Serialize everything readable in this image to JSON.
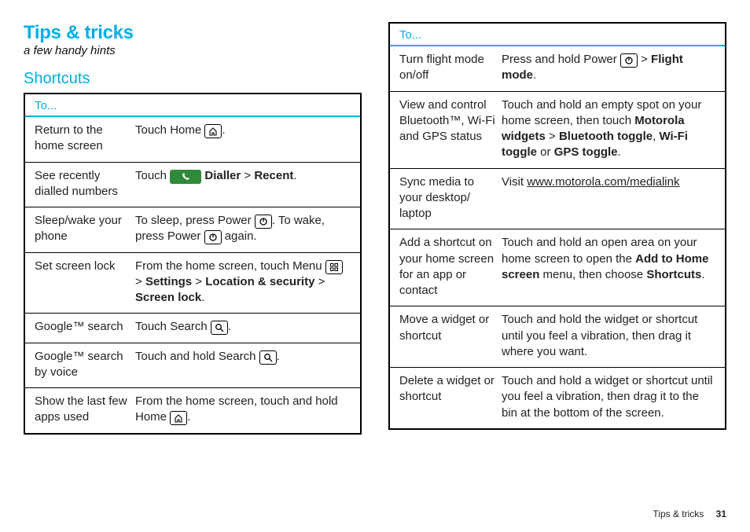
{
  "colors": {
    "accent": "#00aee6",
    "text": "#222222",
    "border": "#000000",
    "dialler_bg": "#2f8a3a"
  },
  "header": {
    "title": "Tips & tricks",
    "subtitle": "a few handy hints"
  },
  "section": {
    "shortcuts_label": "Shortcuts"
  },
  "table": {
    "header": "To..."
  },
  "left_rows": [
    {
      "task": "Return to the home screen",
      "parts": [
        {
          "t": "Touch Home "
        },
        {
          "icon": "home"
        },
        {
          "t": "."
        }
      ]
    },
    {
      "task": "See recently dialled numbers",
      "parts": [
        {
          "t": "Touch "
        },
        {
          "icon": "dialler"
        },
        {
          "t": " "
        },
        {
          "b": "Dialler"
        },
        {
          "t": " > "
        },
        {
          "b": "Recent"
        },
        {
          "t": "."
        }
      ]
    },
    {
      "task": "Sleep/wake your phone",
      "parts": [
        {
          "t": "To sleep, press Power "
        },
        {
          "icon": "power"
        },
        {
          "t": ". To wake, press Power "
        },
        {
          "icon": "power"
        },
        {
          "t": " again."
        }
      ]
    },
    {
      "task": "Set screen lock",
      "parts": [
        {
          "t": "From the home screen, touch Menu "
        },
        {
          "icon": "menu"
        },
        {
          "t": " > "
        },
        {
          "b": "Settings"
        },
        {
          "t": " > "
        },
        {
          "b": "Location & security"
        },
        {
          "t": " > "
        },
        {
          "b": "Screen lock"
        },
        {
          "t": "."
        }
      ]
    },
    {
      "task": "Google™ search",
      "parts": [
        {
          "t": "Touch Search "
        },
        {
          "icon": "search"
        },
        {
          "t": "."
        }
      ]
    },
    {
      "task": "Google™ search by voice",
      "parts": [
        {
          "t": "Touch and hold Search "
        },
        {
          "icon": "search"
        },
        {
          "t": "."
        }
      ]
    },
    {
      "task": "Show the last few apps used",
      "parts": [
        {
          "t": "From the home screen, touch and hold Home "
        },
        {
          "icon": "home"
        },
        {
          "t": "."
        }
      ]
    }
  ],
  "right_rows": [
    {
      "task": "Turn flight mode on/off",
      "parts": [
        {
          "t": "Press and hold Power "
        },
        {
          "icon": "power"
        },
        {
          "t": " > "
        },
        {
          "b": "Flight mode"
        },
        {
          "t": "."
        }
      ]
    },
    {
      "task": "View and control Bluetooth™, Wi-Fi and GPS status",
      "parts": [
        {
          "t": "Touch and hold an empty spot on your home screen, then touch "
        },
        {
          "b": "Motorola widgets"
        },
        {
          "t": " > "
        },
        {
          "b": "Bluetooth toggle"
        },
        {
          "t": ", "
        },
        {
          "b": "Wi-Fi toggle"
        },
        {
          "t": " or "
        },
        {
          "b": "GPS toggle"
        },
        {
          "t": "."
        }
      ]
    },
    {
      "task": "Sync media to your desktop/ laptop",
      "parts": [
        {
          "t": "Visit "
        },
        {
          "link": "www.motorola.com/medialink"
        }
      ]
    },
    {
      "task": "Add a shortcut on your home screen for an app or contact",
      "parts": [
        {
          "t": "Touch and hold an open area on your home screen to open the "
        },
        {
          "b": "Add to Home screen"
        },
        {
          "t": " menu, then choose "
        },
        {
          "b": "Shortcuts"
        },
        {
          "t": "."
        }
      ]
    },
    {
      "task": "Move a widget or shortcut",
      "parts": [
        {
          "t": "Touch and hold the widget or shortcut until you feel a vibration, then drag it where you want."
        }
      ]
    },
    {
      "task": "Delete a widget or shortcut",
      "parts": [
        {
          "t": "Touch and hold a widget or shortcut until you feel a vibration, then drag it to the bin at the bottom of the screen."
        }
      ]
    }
  ],
  "footer": {
    "label": "Tips & tricks",
    "page": "31"
  }
}
